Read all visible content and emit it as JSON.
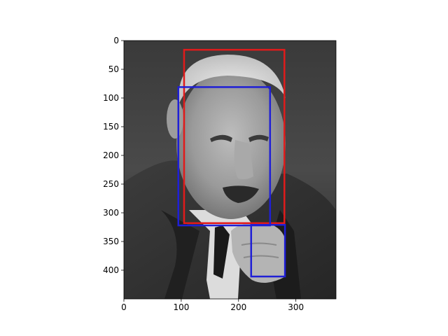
{
  "chart_data": {
    "type": "image",
    "image": {
      "description_icon": "grayscale-portrait-photo",
      "extent_x": [
        0,
        370
      ],
      "extent_y": [
        0,
        450
      ],
      "y_axis_inverted": true
    },
    "xlim": [
      0,
      370
    ],
    "ylim": [
      450,
      0
    ],
    "x_ticks": [
      0,
      100,
      200,
      300
    ],
    "y_ticks": [
      0,
      50,
      100,
      150,
      200,
      250,
      300,
      350,
      400
    ],
    "boxes": [
      {
        "color": "#e01b1b",
        "x0": 105,
        "y0": 16,
        "x1": 280,
        "y1": 318
      },
      {
        "color": "#1f1fd6",
        "x0": 95,
        "y0": 81,
        "x1": 255,
        "y1": 322
      },
      {
        "color": "#1f1fd6",
        "x0": 222,
        "y0": 321,
        "x1": 281,
        "y1": 411
      }
    ],
    "title": "",
    "xlabel": "",
    "ylabel": "",
    "grid": false
  }
}
